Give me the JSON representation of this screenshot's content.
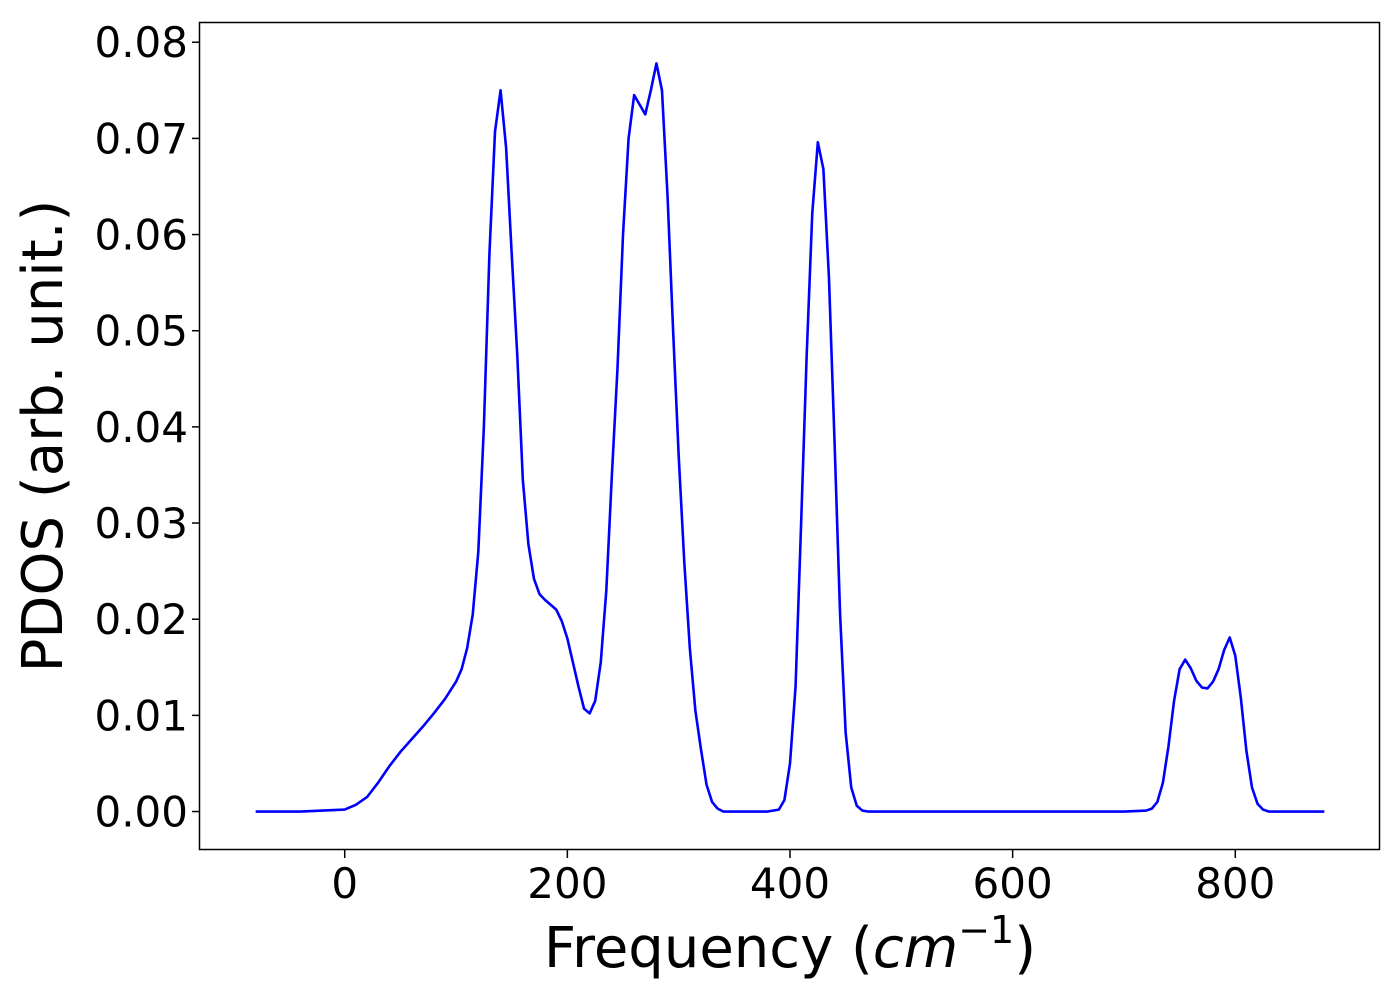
{
  "chart_data": {
    "type": "line",
    "title": "",
    "xlabel": "Frequency (",
    "xlabel_var": "cm",
    "xlabel_exp": "−1",
    "xlabel_close": ")",
    "ylabel": "PDOS (arb. unit.)",
    "xlim": [
      -130,
      930
    ],
    "ylim": [
      -0.004,
      0.082
    ],
    "xticks": [
      0,
      200,
      400,
      600,
      800
    ],
    "xtick_labels": [
      "0",
      "200",
      "400",
      "600",
      "800"
    ],
    "yticks": [
      0.0,
      0.01,
      0.02,
      0.03,
      0.04,
      0.05,
      0.06,
      0.07,
      0.08
    ],
    "ytick_labels": [
      "0.00",
      "0.01",
      "0.02",
      "0.03",
      "0.04",
      "0.05",
      "0.06",
      "0.07",
      "0.08"
    ],
    "grid": false,
    "series": [
      {
        "color": "#0000ff",
        "x": [
          -80,
          -40,
          0,
          10,
          20,
          30,
          40,
          50,
          60,
          70,
          80,
          90,
          100,
          105,
          110,
          115,
          120,
          125,
          130,
          135,
          140,
          145,
          150,
          155,
          160,
          165,
          170,
          175,
          180,
          185,
          190,
          195,
          200,
          205,
          210,
          215,
          220,
          225,
          230,
          235,
          240,
          245,
          250,
          255,
          260,
          265,
          270,
          275,
          280,
          285,
          290,
          295,
          300,
          305,
          310,
          315,
          320,
          325,
          330,
          335,
          340,
          350,
          360,
          370,
          380,
          390,
          395,
          400,
          405,
          410,
          415,
          420,
          425,
          430,
          435,
          440,
          445,
          450,
          455,
          460,
          465,
          470,
          480,
          500,
          600,
          700,
          720,
          725,
          730,
          735,
          740,
          745,
          750,
          755,
          760,
          765,
          770,
          775,
          780,
          785,
          790,
          795,
          800,
          805,
          810,
          815,
          820,
          825,
          830,
          840,
          880
        ],
        "y": [
          0.0,
          0.0,
          0.0002,
          0.0007,
          0.0015,
          0.003,
          0.0047,
          0.0062,
          0.0075,
          0.0088,
          0.0102,
          0.0117,
          0.0135,
          0.0148,
          0.017,
          0.0205,
          0.027,
          0.04,
          0.058,
          0.0707,
          0.075,
          0.069,
          0.058,
          0.0475,
          0.0345,
          0.0278,
          0.0242,
          0.0226,
          0.022,
          0.0215,
          0.021,
          0.0198,
          0.018,
          0.0155,
          0.013,
          0.0107,
          0.0102,
          0.0115,
          0.0155,
          0.023,
          0.035,
          0.046,
          0.06,
          0.07,
          0.0745,
          0.0735,
          0.0725,
          0.075,
          0.0778,
          0.075,
          0.064,
          0.05,
          0.037,
          0.026,
          0.017,
          0.0105,
          0.0065,
          0.0028,
          0.001,
          0.0003,
          0.0,
          0.0,
          0.0,
          0.0,
          0.0,
          0.0002,
          0.0012,
          0.005,
          0.013,
          0.03,
          0.0475,
          0.0622,
          0.0696,
          0.0668,
          0.0555,
          0.0385,
          0.0205,
          0.0082,
          0.0025,
          0.0006,
          0.0001,
          0.0,
          0.0,
          0.0,
          0.0,
          0.0,
          0.0001,
          0.0003,
          0.001,
          0.003,
          0.0068,
          0.0115,
          0.0148,
          0.0158,
          0.0149,
          0.0136,
          0.0129,
          0.0128,
          0.0135,
          0.0148,
          0.0168,
          0.0181,
          0.0162,
          0.0118,
          0.0063,
          0.0025,
          0.0008,
          0.0002,
          0.0,
          0.0,
          0.0
        ]
      }
    ]
  }
}
